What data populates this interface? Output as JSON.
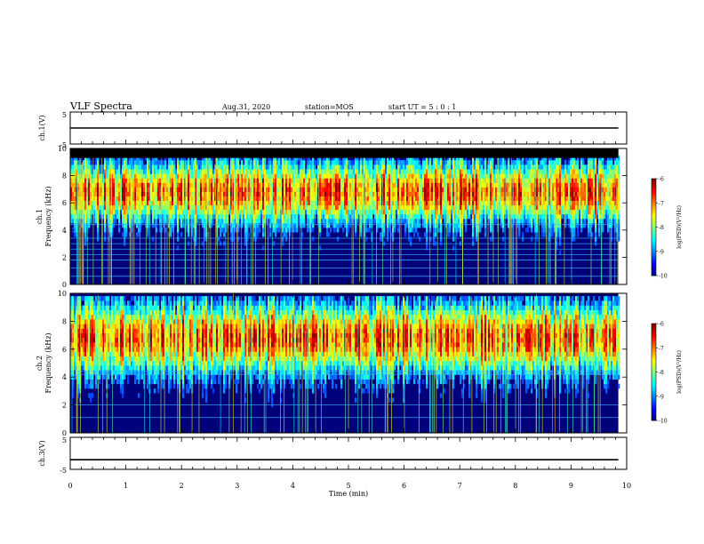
{
  "header": {
    "title": "VLF Spectra",
    "date": "Aug.31, 2020",
    "station": "station=MOS",
    "start": "start UT =  5 : 0 : 1"
  },
  "chart_data": [
    {
      "type": "line",
      "ylabel": "ch.1(V)",
      "yticks": [
        "5",
        "-5"
      ],
      "ylim": [
        -5,
        5
      ],
      "series": [
        {
          "values": [
            0,
            0
          ]
        }
      ]
    },
    {
      "type": "heatmap",
      "ylabel_line1": "ch.1",
      "ylabel_line2": "Frequency (kHz)",
      "ylim": [
        0,
        10
      ],
      "yticks": [
        "0",
        "2",
        "4",
        "6",
        "8",
        "10"
      ],
      "band_center_khz": 6.8,
      "colorbar": {
        "label": "log(PSD)(V²/Hz)",
        "ticks": [
          "-6",
          "-7",
          "-8",
          "-9",
          "-10"
        ],
        "range": [
          -10,
          -6
        ]
      }
    },
    {
      "type": "heatmap",
      "ylabel_line1": "ch.2",
      "ylabel_line2": "Frequency (kHz)",
      "ylim": [
        0,
        10
      ],
      "yticks": [
        "0",
        "2",
        "4",
        "6",
        "8",
        "10"
      ],
      "band_center_khz": 6.8,
      "colorbar": {
        "label": "log(PSD)(V²/Hz)",
        "ticks": [
          "-6",
          "-7",
          "-8",
          "-9",
          "-10"
        ],
        "range": [
          -10,
          -6
        ]
      }
    },
    {
      "type": "line",
      "ylabel": "ch.3(V)",
      "yticks": [
        "5",
        "-5"
      ],
      "ylim": [
        -5,
        5
      ],
      "series": [
        {
          "values": [
            -2,
            -2
          ]
        }
      ]
    }
  ],
  "xaxis": {
    "label": "Time (min)",
    "xlim": [
      0,
      10
    ],
    "ticks": [
      "0",
      "1",
      "2",
      "3",
      "4",
      "5",
      "6",
      "7",
      "8",
      "9",
      "10"
    ],
    "data_end_min": 9.85
  }
}
